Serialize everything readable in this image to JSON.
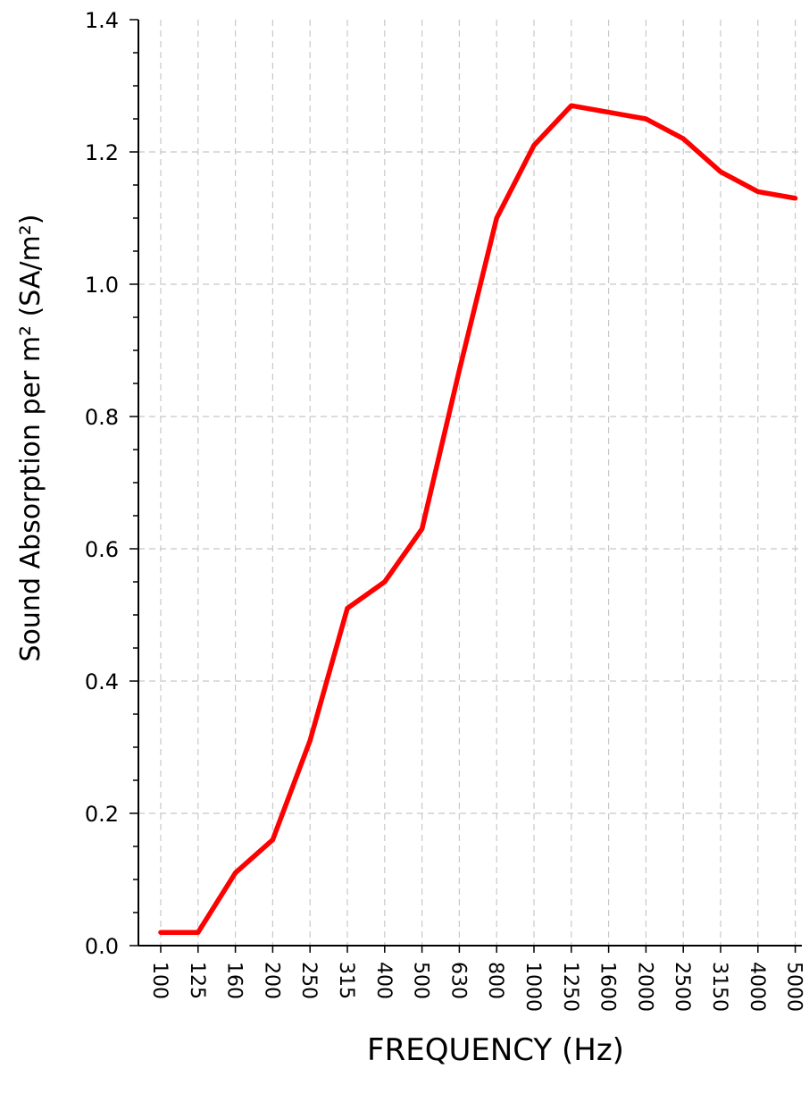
{
  "chart_data": {
    "type": "line",
    "title": "",
    "xlabel": "FREQUENCY (Hz)",
    "ylabel": "Sound Absorption per m² (SA/m²)",
    "categories": [
      "100",
      "125",
      "160",
      "200",
      "250",
      "315",
      "400",
      "500",
      "630",
      "800",
      "1000",
      "1250",
      "1600",
      "2000",
      "2500",
      "3150",
      "4000",
      "5000"
    ],
    "series": [
      {
        "values": [
          0.02,
          0.02,
          0.11,
          0.16,
          0.31,
          0.51,
          0.55,
          0.63,
          0.87,
          1.1,
          1.21,
          1.27,
          1.26,
          1.25,
          1.22,
          1.17,
          1.14,
          1.13
        ],
        "color": "#ff0000"
      }
    ],
    "ylim": [
      0.0,
      1.4
    ],
    "yticks": [
      "0.0",
      "0.2",
      "0.4",
      "0.6",
      "0.8",
      "1.0",
      "1.2",
      "1.4"
    ],
    "grid": true
  }
}
